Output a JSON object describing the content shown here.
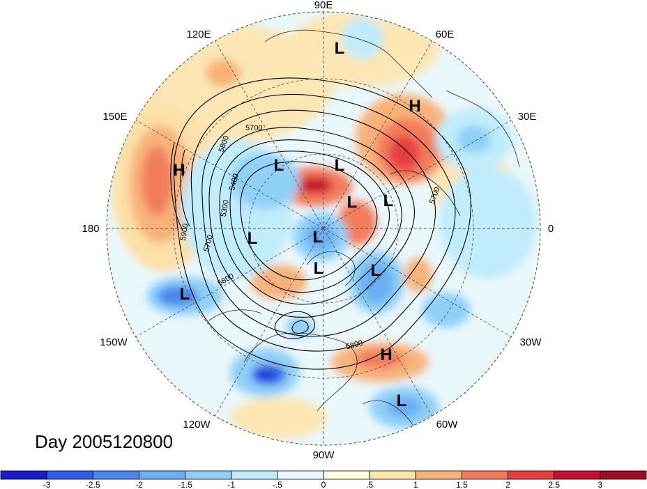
{
  "title": "Day 2005120800",
  "longitude_labels": {
    "lon_90E": "90E",
    "lon_60E": "60E",
    "lon_30E": "30E",
    "lon_0": "0",
    "lon_30W": "30W",
    "lon_60W": "60W",
    "lon_90W": "90W",
    "lon_120W": "120W",
    "lon_150W": "150W",
    "lon_180": "180",
    "lon_150E": "150E",
    "lon_120E": "120E"
  },
  "pressure_systems": [
    {
      "label": "L"
    },
    {
      "label": "H"
    },
    {
      "label": "H"
    },
    {
      "label": "L"
    },
    {
      "label": "L"
    },
    {
      "label": "L"
    },
    {
      "label": "L"
    },
    {
      "label": "L"
    },
    {
      "label": "L"
    },
    {
      "label": "L"
    },
    {
      "label": "L"
    },
    {
      "label": "L"
    },
    {
      "label": "H"
    },
    {
      "label": "L"
    }
  ],
  "contour_labels": [
    "5700",
    "5800",
    "5400",
    "5300",
    "5900",
    "5700",
    "5800",
    "5800",
    "5700"
  ],
  "colorbar": {
    "tick_labels": [
      "-3",
      "-2.5",
      "-2",
      "-1.5",
      "-1",
      "-.5",
      "0",
      ".5",
      "1",
      "1.5",
      "2",
      "2.5",
      "3"
    ],
    "colors": [
      "#1b1bd0",
      "#2c5fe8",
      "#4a86ee",
      "#6aaef3",
      "#8fd0f7",
      "#c0ecfb",
      "#e8f8fd",
      "#fffbe0",
      "#fbe6a8",
      "#f7b27a",
      "#f27c5c",
      "#e83d3d",
      "#c8102e",
      "#a00c20"
    ]
  },
  "colors": {
    "background": "#ffffff",
    "ocean_neutral": "#e8f8fd",
    "warm_anomaly": "#e83d3d",
    "cold_anomaly": "#2c5fe8",
    "contour": "#000000",
    "graticule": "#555555"
  }
}
